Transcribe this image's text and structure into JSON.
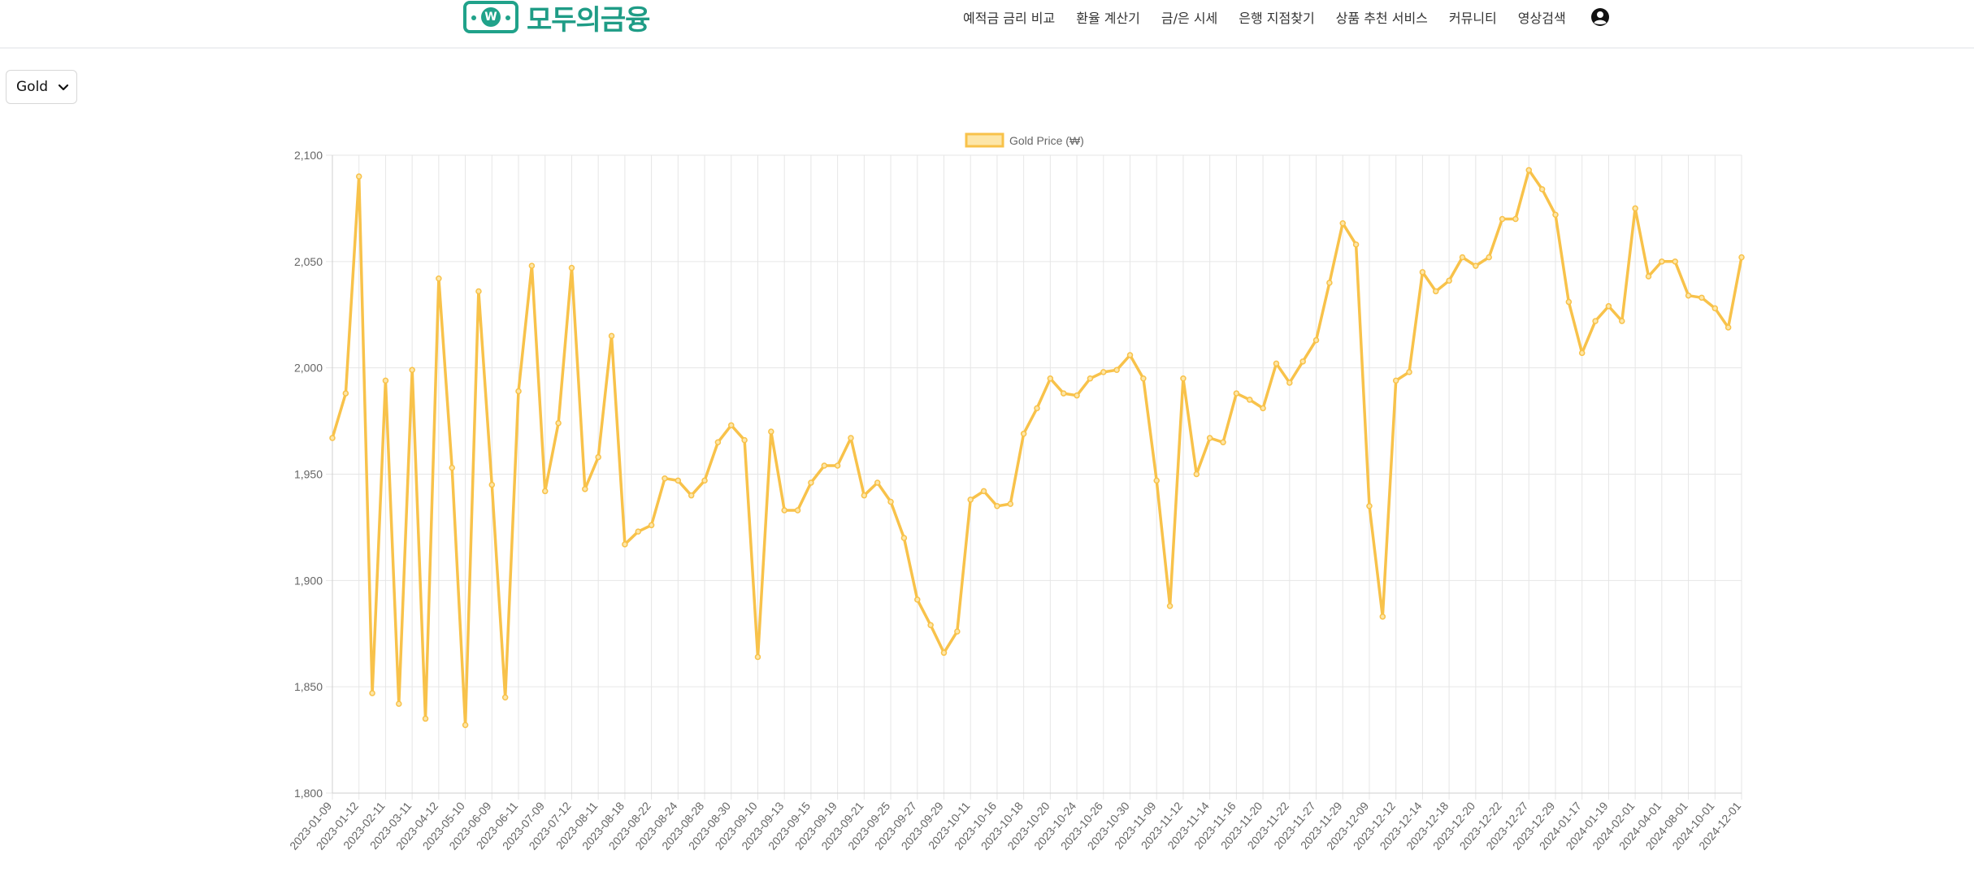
{
  "header": {
    "logo_text": "모두의금융",
    "logo_coin": "W",
    "nav": [
      "예적금 금리 비교",
      "환율 계산기",
      "금/은 시세",
      "은행 지점찾기",
      "상품 추천 서비스",
      "커뮤니티",
      "영상검색"
    ],
    "user_icon": "user-circle-icon"
  },
  "metal_select": {
    "value": "Gold",
    "icon": "chevron-down-icon"
  },
  "colors": {
    "accent": "#1f9c86",
    "line": "#f8c24a",
    "legend_fill": "#fde6a8",
    "grid": "#e6e6e6",
    "axis_text": "#666666"
  },
  "chart_data": {
    "type": "line",
    "legend_position": "top",
    "grid": true,
    "ylim": [
      1800,
      2100
    ],
    "yticks": [
      "2,100",
      "2,050",
      "2,000",
      "1,950",
      "1,900",
      "1,850",
      "1,800"
    ],
    "x_tick_labels": [
      "2023-01-09",
      "2023-01-12",
      "2023-02-11",
      "2023-03-11",
      "2023-04-12",
      "2023-05-10",
      "2023-06-09",
      "2023-06-11",
      "2023-07-09",
      "2023-07-12",
      "2023-08-11",
      "2023-08-18",
      "2023-08-22",
      "2023-08-24",
      "2023-08-28",
      "2023-08-30",
      "2023-09-10",
      "2023-09-13",
      "2023-09-15",
      "2023-09-19",
      "2023-09-21",
      "2023-09-25",
      "2023-09-27",
      "2023-09-29",
      "2023-10-11",
      "2023-10-16",
      "2023-10-18",
      "2023-10-20",
      "2023-10-24",
      "2023-10-26",
      "2023-10-30",
      "2023-11-09",
      "2023-11-12",
      "2023-11-14",
      "2023-11-16",
      "2023-11-20",
      "2023-11-22",
      "2023-11-27",
      "2023-11-29",
      "2023-12-09",
      "2023-12-12",
      "2023-12-14",
      "2023-12-18",
      "2023-12-20",
      "2023-12-22",
      "2023-12-27",
      "2023-12-29",
      "2024-01-17",
      "2024-01-19",
      "2024-02-01",
      "2024-04-01",
      "2024-08-01",
      "2024-10-01",
      "2024-12-01"
    ],
    "series": [
      {
        "name": "Gold Price (₩)",
        "values": [
          1967,
          1988,
          2090,
          1847,
          1994,
          1842,
          1999,
          1835,
          2042,
          1953,
          1832,
          2036,
          1945,
          1845,
          1989,
          2048,
          1942,
          1974,
          2047,
          1943,
          1958,
          2015,
          1917,
          1923,
          1926,
          1948,
          1947,
          1940,
          1947,
          1965,
          1973,
          1966,
          1864,
          1970,
          1933,
          1933,
          1946,
          1954,
          1954,
          1967,
          1940,
          1946,
          1937,
          1920,
          1891,
          1879,
          1866,
          1876,
          1938,
          1942,
          1935,
          1936,
          1969,
          1981,
          1995,
          1988,
          1987,
          1995,
          1998,
          1999,
          2006,
          1995,
          1947,
          1888,
          1995,
          1950,
          1967,
          1965,
          1988,
          1985,
          1981,
          2002,
          1993,
          2003,
          2013,
          2040,
          2068,
          2058,
          1935,
          1883,
          1994,
          1998,
          2045,
          2036,
          2041,
          2052,
          2048,
          2052,
          2070,
          2070,
          2093,
          2084,
          2072,
          2031,
          2007,
          2022,
          2029,
          2022,
          2075,
          2043,
          2050,
          2050,
          2034,
          2033,
          2028,
          2019,
          2052
        ]
      }
    ]
  }
}
